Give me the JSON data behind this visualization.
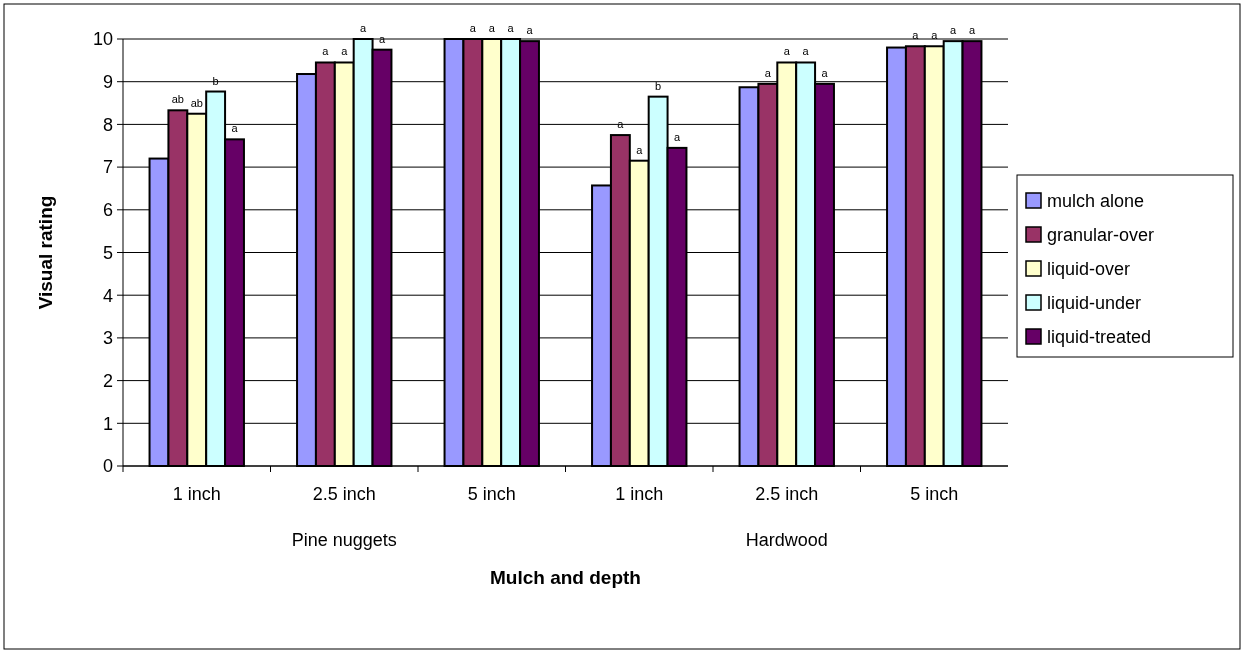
{
  "chart_data": {
    "type": "bar",
    "xlabel": "Mulch and depth",
    "ylabel": "Visual rating",
    "categories": [
      "1 inch",
      "2.5 inch",
      "5 inch",
      "1 inch",
      "2.5 inch",
      "5 inch"
    ],
    "annotations": [
      "Pine nuggets",
      "Hardwood"
    ],
    "series": [
      {
        "name": "mulch alone",
        "color": "#9999ff",
        "values": [
          7.2,
          9.18,
          10,
          6.57,
          8.87,
          9.8
        ]
      },
      {
        "name": "granular-over",
        "color": "#993366",
        "values": [
          8.33,
          9.45,
          10,
          7.75,
          8.95,
          9.83
        ],
        "value_labels": [
          "ab",
          "a",
          "a",
          "a",
          "a",
          "a"
        ]
      },
      {
        "name": "liquid-over",
        "color": "#ffffcc",
        "values": [
          8.25,
          9.45,
          10,
          7.15,
          9.45,
          9.83
        ],
        "value_labels": [
          "ab",
          "a",
          "a",
          "a",
          "a",
          "a"
        ]
      },
      {
        "name": "liquid-under",
        "color": "#ccffff",
        "values": [
          8.77,
          10,
          10,
          8.65,
          9.45,
          9.95
        ],
        "value_labels": [
          "b",
          "a",
          "a",
          "b",
          "a",
          "a"
        ]
      },
      {
        "name": "liquid-treated",
        "color": "#660066",
        "values": [
          7.65,
          9.75,
          9.95,
          7.45,
          8.95,
          9.95
        ],
        "value_labels": [
          "a",
          "a",
          "a",
          "a",
          "a",
          "a"
        ]
      }
    ],
    "ylim": [
      0,
      10
    ],
    "yticks": [
      0,
      1,
      2,
      3,
      4,
      5,
      6,
      7,
      8,
      9,
      10
    ],
    "grid": "y",
    "legend": "right"
  }
}
